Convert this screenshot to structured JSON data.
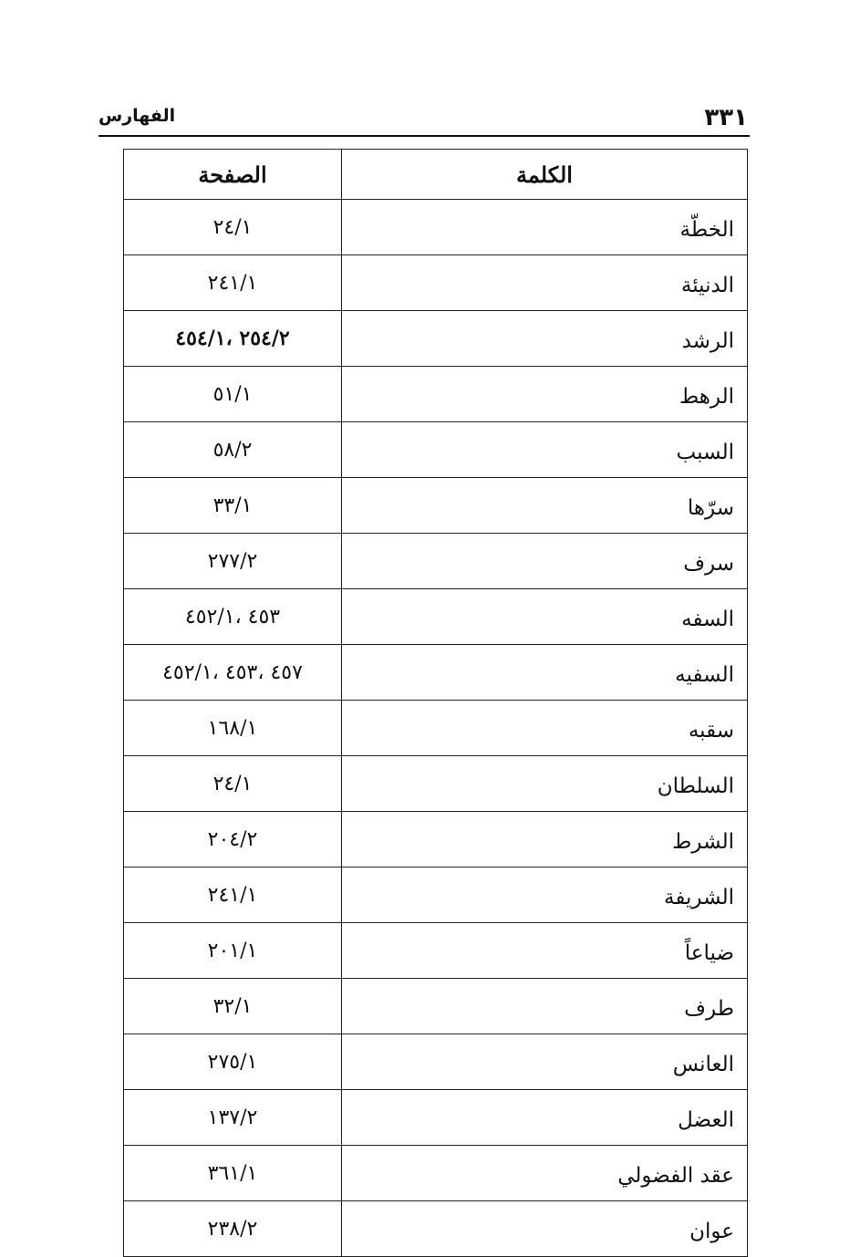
{
  "header": {
    "page_number": "٣٣١",
    "section_title": "الفهارس"
  },
  "table": {
    "columns": [
      "الكلمة",
      "الصفحة"
    ],
    "rows": [
      {
        "word": "الخطّة",
        "pages": "٢٤/١"
      },
      {
        "word": "الدنيئة",
        "pages": "٢٤١/١"
      },
      {
        "word": "الرشد",
        "pages": "٢٥٤/٢ ،٤٥٤/١",
        "bold": true
      },
      {
        "word": "الرهط",
        "pages": "٥١/١"
      },
      {
        "word": "السبب",
        "pages": "٥٨/٢"
      },
      {
        "word": "سرّها",
        "pages": "٣٣/١"
      },
      {
        "word": "سرف",
        "pages": "٢٧٧/٢"
      },
      {
        "word": "السفه",
        "pages": "٤٥٣ ،٤٥٢/١"
      },
      {
        "word": "السفيه",
        "pages": "٤٥٧ ،٤٥٣ ،٤٥٢/١"
      },
      {
        "word": "سقبه",
        "pages": "١٦٨/١"
      },
      {
        "word": "السلطان",
        "pages": "٢٤/١"
      },
      {
        "word": "الشرط",
        "pages": "٢٠٤/٢"
      },
      {
        "word": "الشريفة",
        "pages": "٢٤١/١"
      },
      {
        "word": "ضياعاً",
        "pages": "٢٠١/١"
      },
      {
        "word": "طرف",
        "pages": "٣٢/١"
      },
      {
        "word": "العانس",
        "pages": "٢٧٥/١"
      },
      {
        "word": "العضل",
        "pages": "١٣٧/٢"
      },
      {
        "word": "عقد الفضولي",
        "pages": "٣٦١/١"
      },
      {
        "word": "عوان",
        "pages": "٢٣٨/٢"
      }
    ]
  }
}
